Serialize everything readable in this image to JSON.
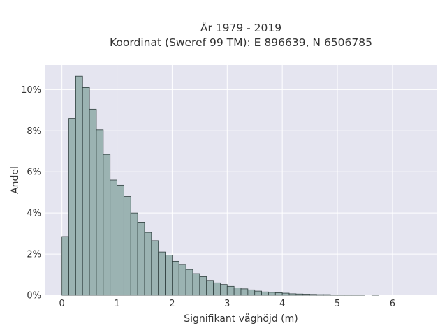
{
  "chart_data": {
    "type": "bar",
    "title": "År 1979 - 2019",
    "subtitle": "Koordinat (Sweref 99 TM): E 896639, N 6506785",
    "xlabel": "Signifikant våghöjd (m)",
    "ylabel": "Andel",
    "xlim": [
      -0.3,
      6.8
    ],
    "ylim": [
      0,
      11.2
    ],
    "xticks": [
      0,
      1,
      2,
      3,
      4,
      5,
      6
    ],
    "yticks": [
      0,
      2,
      4,
      6,
      8,
      10
    ],
    "xtick_labels": [
      "0",
      "1",
      "2",
      "3",
      "4",
      "5",
      "6"
    ],
    "ytick_labels": [
      "0%",
      "2%",
      "4%",
      "6%",
      "8%",
      "10%"
    ],
    "y_unit": "%",
    "grid": true,
    "bin_width": 0.125,
    "series": [
      {
        "values": [
          {
            "x": 0.0,
            "y": 2.85
          },
          {
            "x": 0.125,
            "y": 8.6
          },
          {
            "x": 0.25,
            "y": 10.65
          },
          {
            "x": 0.375,
            "y": 10.1
          },
          {
            "x": 0.5,
            "y": 9.05
          },
          {
            "x": 0.625,
            "y": 8.05
          },
          {
            "x": 0.75,
            "y": 6.85
          },
          {
            "x": 0.875,
            "y": 5.6
          },
          {
            "x": 1.0,
            "y": 5.35
          },
          {
            "x": 1.125,
            "y": 4.8
          },
          {
            "x": 1.25,
            "y": 4.0
          },
          {
            "x": 1.375,
            "y": 3.55
          },
          {
            "x": 1.5,
            "y": 3.05
          },
          {
            "x": 1.625,
            "y": 2.65
          },
          {
            "x": 1.75,
            "y": 2.1
          },
          {
            "x": 1.875,
            "y": 1.95
          },
          {
            "x": 2.0,
            "y": 1.65
          },
          {
            "x": 2.125,
            "y": 1.5
          },
          {
            "x": 2.25,
            "y": 1.25
          },
          {
            "x": 2.375,
            "y": 1.05
          },
          {
            "x": 2.5,
            "y": 0.9
          },
          {
            "x": 2.625,
            "y": 0.72
          },
          {
            "x": 2.75,
            "y": 0.6
          },
          {
            "x": 2.875,
            "y": 0.52
          },
          {
            "x": 3.0,
            "y": 0.43
          },
          {
            "x": 3.125,
            "y": 0.36
          },
          {
            "x": 3.25,
            "y": 0.31
          },
          {
            "x": 3.375,
            "y": 0.26
          },
          {
            "x": 3.5,
            "y": 0.2
          },
          {
            "x": 3.625,
            "y": 0.16
          },
          {
            "x": 3.75,
            "y": 0.14
          },
          {
            "x": 3.875,
            "y": 0.12
          },
          {
            "x": 4.0,
            "y": 0.1
          },
          {
            "x": 4.125,
            "y": 0.07
          },
          {
            "x": 4.25,
            "y": 0.06
          },
          {
            "x": 4.375,
            "y": 0.05
          },
          {
            "x": 4.5,
            "y": 0.04
          },
          {
            "x": 4.625,
            "y": 0.03
          },
          {
            "x": 4.75,
            "y": 0.03
          },
          {
            "x": 4.875,
            "y": 0.02
          },
          {
            "x": 5.0,
            "y": 0.02
          },
          {
            "x": 5.125,
            "y": 0.015
          },
          {
            "x": 5.25,
            "y": 0.01
          },
          {
            "x": 5.375,
            "y": 0.01
          },
          {
            "x": 5.625,
            "y": 0.01
          }
        ]
      }
    ],
    "colors": {
      "bar_fill": "#9bb3b2",
      "bar_stroke": "#2f3f3e",
      "plot_background": "#e5e5f0",
      "grid": "#ffffff",
      "text": "#333333"
    }
  }
}
